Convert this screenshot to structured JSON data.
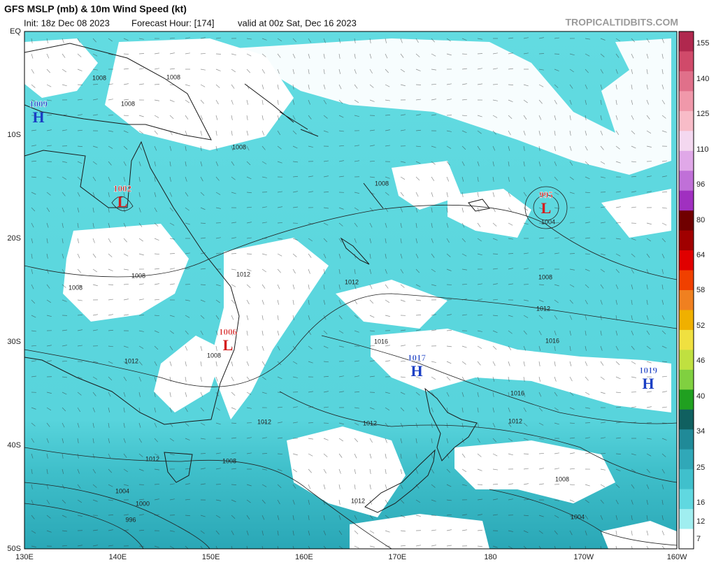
{
  "header": {
    "title": "GFS MSLP (mb) & 10m Wind Speed (kt)",
    "init": "Init: 18z Dec 08 2023",
    "forecast_hour": "Forecast Hour: [174]",
    "valid": "valid at 00z Sat, Dec 16 2023",
    "source": "TROPICALTIDBITS.COM"
  },
  "map": {
    "lat_labels": [
      "EQ",
      "10S",
      "20S",
      "30S",
      "40S",
      "50S"
    ],
    "lon_labels": [
      "130E",
      "140E",
      "150E",
      "160E",
      "170E",
      "180",
      "170W",
      "160W"
    ],
    "pressure_centers": [
      {
        "label": "H",
        "value": 1009
      },
      {
        "label": "L",
        "value": 1002
      },
      {
        "label": "L",
        "value": 1006
      },
      {
        "label": "L",
        "value": 995
      },
      {
        "label": "H",
        "value": 1017
      },
      {
        "label": "H",
        "value": 1019
      }
    ],
    "isobar_labels": [
      1008,
      1008,
      1008,
      1008,
      1008,
      1004,
      1012,
      1012,
      1008,
      1008,
      1008,
      1012,
      1016,
      1016,
      1012,
      1008,
      1016,
      1012,
      1012,
      1012,
      1012,
      1008,
      1008,
      1004,
      1000,
      996,
      1012,
      1004
    ]
  },
  "colorbar": {
    "ticks": [
      155,
      140,
      125,
      110,
      96,
      80,
      64,
      58,
      52,
      46,
      40,
      34,
      25,
      16,
      12,
      7
    ]
  }
}
